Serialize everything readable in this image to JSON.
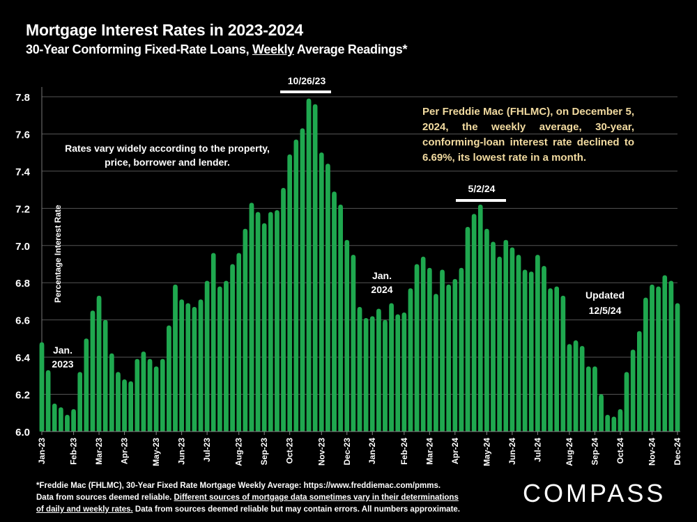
{
  "header": {
    "title": "Mortgage Interest Rates in 2023-2024",
    "subtitle_pre": "30-Year Conforming Fixed-Rate Loans, ",
    "subtitle_underlined": "Weekly",
    "subtitle_post": " Average Readings*"
  },
  "annotations": {
    "peak_label": "10/26/23",
    "peak2_label": "5/2/24",
    "rates_vary": "Rates vary widely according to the property, price, borrower and lender.",
    "jan2023_line1": "Jan.",
    "jan2023_line2": "2023",
    "jan2024_line1": "Jan.",
    "jan2024_line2": "2024",
    "updated_line1": "Updated",
    "updated_line2": "12/5/24",
    "freddie_note": "Per Freddie Mac (FHLMC), on December 5, 2024, the weekly average, 30-year, conforming-loan interest rate declined to 6.69%, its lowest rate in a month."
  },
  "footer": {
    "line1": "*Freddie Mac (FHLMC), 30-Year Fixed Rate Mortgage Weekly Average:  https://www.freddiemac.com/pmms.",
    "line2_pre": "Data from sources deemed reliable. ",
    "line2_underlined": "Different sources of mortgage data sometimes vary in their determinations",
    "line3_underlined": "of daily and weekly rates.",
    "line3_post": " Data from sources deemed reliable but may contain errors. All numbers approximate.",
    "logo": "COMPASS"
  },
  "colors": {
    "bar": "#1fa84f",
    "background": "#000000",
    "note": "#f2dba0",
    "grid": "#555555"
  },
  "chart_data": {
    "type": "bar",
    "title": "Mortgage Interest Rates in 2023-2024",
    "xlabel": "",
    "ylabel": "Percentage Interest  Rate",
    "ylim": [
      6.0,
      7.8
    ],
    "yticks": [
      "6.0",
      "6.2",
      "6.4",
      "6.6",
      "6.8",
      "7.0",
      "7.2",
      "7.4",
      "7.6",
      "7.8"
    ],
    "grid": true,
    "month_ticks": [
      "Jan-23",
      "Feb-23",
      "Mar-23",
      "Apr-23",
      "May-23",
      "Jun-23",
      "Jul-23",
      "Aug-23",
      "Sep-23",
      "Oct-23",
      "Nov-23",
      "Dec-23",
      "Jan-24",
      "Feb-24",
      "Mar-24",
      "Apr-24",
      "May-24",
      "Jun-24",
      "Jul-24",
      "Aug-24",
      "Sep-24",
      "Oct-24",
      "Nov-24",
      "Dec-24"
    ],
    "month_tick_index": [
      0,
      5,
      9,
      13,
      18,
      22,
      26,
      31,
      35,
      39,
      44,
      48,
      52,
      57,
      61,
      65,
      70,
      74,
      78,
      83,
      87,
      91,
      96,
      100
    ],
    "values": [
      6.48,
      6.33,
      6.15,
      6.13,
      6.09,
      6.12,
      6.32,
      6.5,
      6.65,
      6.73,
      6.6,
      6.42,
      6.32,
      6.28,
      6.27,
      6.39,
      6.43,
      6.39,
      6.35,
      6.39,
      6.57,
      6.79,
      6.71,
      6.69,
      6.67,
      6.71,
      6.81,
      6.96,
      6.78,
      6.81,
      6.9,
      6.96,
      7.09,
      7.23,
      7.18,
      7.12,
      7.18,
      7.19,
      7.31,
      7.49,
      7.57,
      7.63,
      7.79,
      7.76,
      7.5,
      7.44,
      7.29,
      7.22,
      7.03,
      6.95,
      6.67,
      6.61,
      6.62,
      6.66,
      6.6,
      6.69,
      6.63,
      6.64,
      6.77,
      6.9,
      6.94,
      6.88,
      6.74,
      6.87,
      6.79,
      6.82,
      6.88,
      7.1,
      7.17,
      7.22,
      7.09,
      7.02,
      6.94,
      7.03,
      6.99,
      6.95,
      6.87,
      6.86,
      6.95,
      6.89,
      6.77,
      6.78,
      6.73,
      6.47,
      6.49,
      6.46,
      6.35,
      6.35,
      6.2,
      6.09,
      6.08,
      6.12,
      6.32,
      6.44,
      6.54,
      6.72,
      6.79,
      6.78,
      6.84,
      6.81,
      6.69
    ]
  }
}
